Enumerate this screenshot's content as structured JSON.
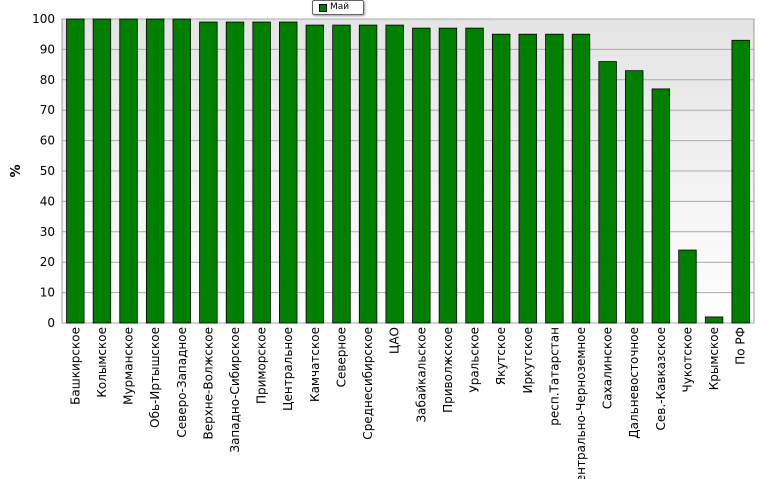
{
  "chart_data": {
    "type": "bar",
    "ylabel": "%",
    "ylim": [
      0,
      100
    ],
    "ytick_step": 10,
    "legend_position": "top-center",
    "series": [
      {
        "name": "Май",
        "color": "#008000",
        "values": [
          100,
          100,
          100,
          100,
          100,
          99,
          99,
          99,
          99,
          98,
          98,
          98,
          98,
          97,
          97,
          97,
          95,
          95,
          95,
          95,
          86,
          83,
          77,
          24,
          2,
          93
        ]
      }
    ],
    "categories": [
      "Башкирское",
      "Колымское",
      "Мурманское",
      "Обь-Иртышское",
      "Северо-Западное",
      "Верхне-Волжское",
      "Западно-Сибирское",
      "Приморское",
      "Центральное",
      "Камчатское",
      "Северное",
      "Среднесибирское",
      "ЦАО",
      "Забайкальское",
      "Приволжское",
      "Уральское",
      "Якутское",
      "Иркутское",
      "респ.Татарстан",
      "Центрально-Черноземное",
      "Сахалинское",
      "Дальневосточное",
      "Сев.-Кавказское",
      "Чукотское",
      "Крымское",
      "По РФ"
    ],
    "grid": true
  }
}
